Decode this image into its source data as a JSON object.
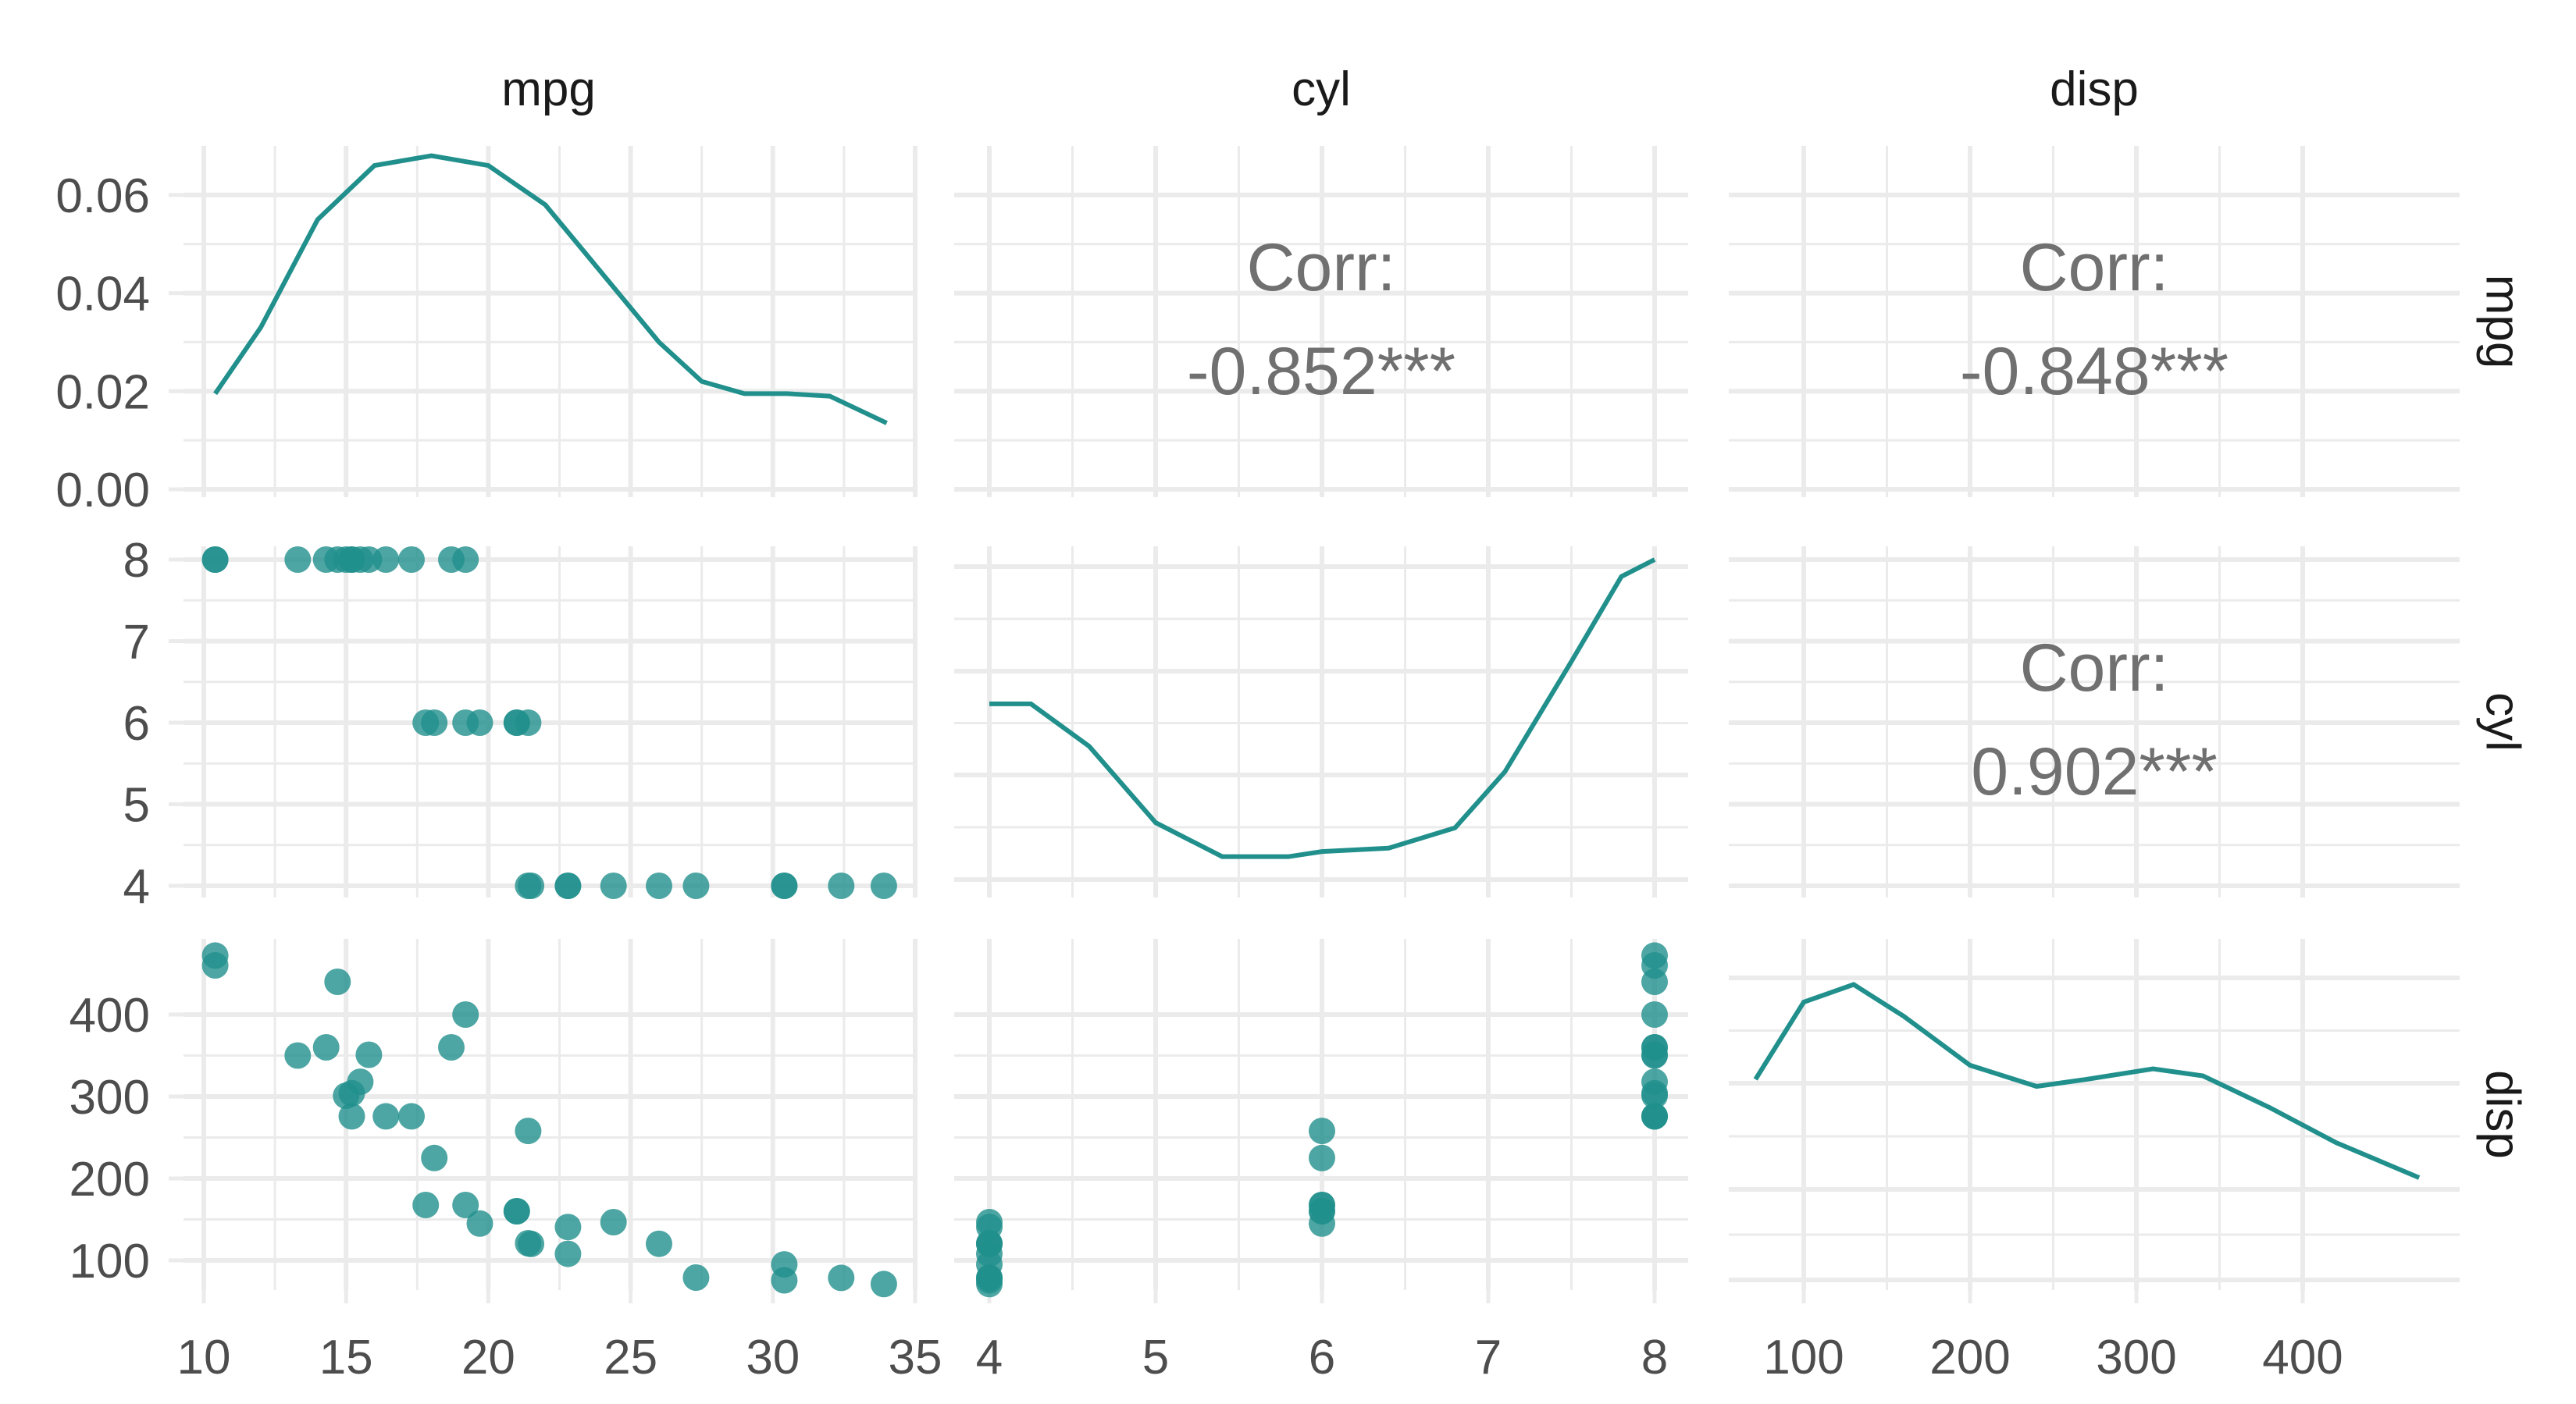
{
  "variables": [
    "mpg",
    "cyl",
    "disp"
  ],
  "colors": {
    "accent": "#21908c",
    "grid": "#ebebeb",
    "corr_text": "#707070",
    "tick_text": "#4d4d4d"
  },
  "chart_data": {
    "type": "scatter",
    "title": "",
    "layout": "pairs-matrix",
    "column_strips": [
      "mpg",
      "cyl",
      "disp"
    ],
    "row_strips": [
      "mpg",
      "cyl",
      "disp"
    ],
    "axes": {
      "mpg": {
        "range": [
          10,
          34.5
        ],
        "ticks": [
          10,
          15,
          20,
          25,
          30,
          35
        ],
        "tick_labels": [
          "10",
          "15",
          "20",
          "25",
          "30",
          "35"
        ]
      },
      "cyl": {
        "range": [
          4,
          8
        ],
        "ticks": [
          4,
          5,
          6,
          7,
          8
        ],
        "tick_labels": [
          "4",
          "5",
          "6",
          "7",
          "8"
        ]
      },
      "disp": {
        "range": [
          70,
          475
        ],
        "ticks": [
          100,
          200,
          300,
          400
        ],
        "tick_labels": [
          "100",
          "200",
          "300",
          "400"
        ]
      },
      "density_y": {
        "range": [
          0,
          0.07
        ],
        "ticks": [
          0,
          0.02,
          0.04,
          0.06
        ],
        "tick_labels": [
          "0.00",
          "0.02",
          "0.04",
          "0.06"
        ]
      }
    },
    "correlations": [
      {
        "row": "mpg",
        "col": "cyl",
        "label": "Corr:",
        "value": "-0.852***"
      },
      {
        "row": "mpg",
        "col": "disp",
        "label": "Corr:",
        "value": "-0.848***"
      },
      {
        "row": "cyl",
        "col": "disp",
        "label": "Corr:",
        "value": "0.902***"
      }
    ],
    "densities": {
      "mpg": [
        [
          10.4,
          0.0195
        ],
        [
          12,
          0.033
        ],
        [
          14,
          0.055
        ],
        [
          16,
          0.066
        ],
        [
          18,
          0.068
        ],
        [
          20,
          0.066
        ],
        [
          22,
          0.058
        ],
        [
          24,
          0.044
        ],
        [
          26,
          0.03
        ],
        [
          27.5,
          0.022
        ],
        [
          29,
          0.0195
        ],
        [
          30.5,
          0.0195
        ],
        [
          32,
          0.019
        ],
        [
          34,
          0.0135
        ]
      ],
      "cyl": [
        [
          4,
          7.15
        ],
        [
          4.25,
          7.15
        ],
        [
          4.6,
          6.9
        ],
        [
          5,
          6.45
        ],
        [
          5.4,
          6.25
        ],
        [
          5.8,
          6.25
        ],
        [
          6,
          6.28
        ],
        [
          6.4,
          6.3
        ],
        [
          6.8,
          6.42
        ],
        [
          7.1,
          6.75
        ],
        [
          7.5,
          7.4
        ],
        [
          7.8,
          7.9
        ],
        [
          8,
          8.0
        ]
      ],
      "disp": [
        [
          71,
          0.6
        ],
        [
          100,
          0.82
        ],
        [
          130,
          0.87
        ],
        [
          160,
          0.78
        ],
        [
          200,
          0.64
        ],
        [
          240,
          0.58
        ],
        [
          270,
          0.6
        ],
        [
          310,
          0.63
        ],
        [
          340,
          0.61
        ],
        [
          380,
          0.52
        ],
        [
          420,
          0.42
        ],
        [
          470,
          0.32
        ]
      ]
    },
    "observations": {
      "mpg": [
        21,
        21,
        22.8,
        21.4,
        18.7,
        18.1,
        14.3,
        24.4,
        22.8,
        19.2,
        17.8,
        16.4,
        17.3,
        15.2,
        10.4,
        10.4,
        14.7,
        32.4,
        30.4,
        33.9,
        21.5,
        15.5,
        15.2,
        13.3,
        19.2,
        27.3,
        26,
        30.4,
        15.8,
        19.7,
        15,
        21.4
      ],
      "cyl": [
        6,
        6,
        4,
        6,
        8,
        6,
        8,
        4,
        4,
        6,
        6,
        8,
        8,
        8,
        8,
        8,
        8,
        4,
        4,
        4,
        4,
        8,
        8,
        8,
        8,
        4,
        4,
        4,
        8,
        6,
        8,
        4
      ],
      "disp": [
        160,
        160,
        108,
        258,
        360,
        225,
        360,
        146.7,
        140.8,
        167.6,
        167.6,
        275.8,
        275.8,
        275.8,
        472,
        460,
        440,
        78.7,
        75.7,
        71.1,
        120.1,
        318,
        304,
        350,
        400,
        79,
        120.3,
        95.1,
        351,
        145,
        301,
        121
      ]
    },
    "series": [
      {
        "panel": "cyl~mpg",
        "x_var": "mpg",
        "y_var": "cyl"
      },
      {
        "panel": "disp~mpg",
        "x_var": "mpg",
        "y_var": "disp"
      },
      {
        "panel": "disp~cyl",
        "x_var": "cyl",
        "y_var": "disp"
      }
    ],
    "grid": true,
    "legend": "none"
  }
}
